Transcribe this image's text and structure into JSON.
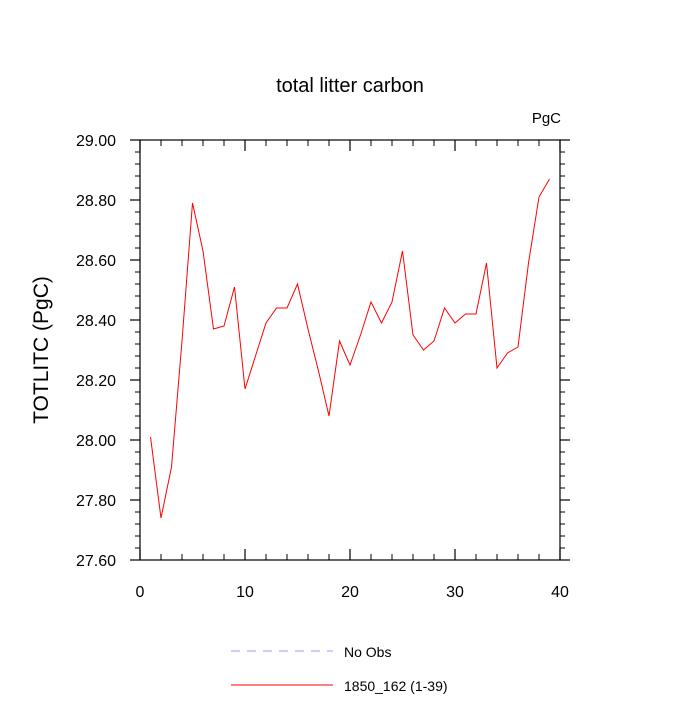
{
  "chart_data": {
    "type": "line",
    "title": "total litter carbon",
    "units_label": "PgC",
    "ylabel": "TOTLITC  (PgC)",
    "xlabel": "",
    "xlim": [
      0,
      40
    ],
    "ylim": [
      27.6,
      29.0
    ],
    "x_ticks": [
      0,
      10,
      20,
      30,
      40
    ],
    "x_tick_labels": [
      "0",
      "10",
      "20",
      "30",
      "40"
    ],
    "y_ticks": [
      27.6,
      27.8,
      28.0,
      28.2,
      28.4,
      28.6,
      28.8,
      29.0
    ],
    "y_tick_labels": [
      "27.60",
      "27.80",
      "28.00",
      "28.20",
      "28.40",
      "28.60",
      "28.80",
      "29.00"
    ],
    "grid": false,
    "legend_position": "bottom",
    "series": [
      {
        "name": "No Obs",
        "color": "#9999ff",
        "dash": "dashed",
        "x": [],
        "y": []
      },
      {
        "name": "1850_162 (1-39)",
        "color": "#ff0000",
        "dash": "solid",
        "x": [
          1,
          2,
          3,
          4,
          5,
          6,
          7,
          8,
          9,
          10,
          11,
          12,
          13,
          14,
          15,
          16,
          17,
          18,
          19,
          20,
          21,
          22,
          23,
          24,
          25,
          26,
          27,
          28,
          29,
          30,
          31,
          32,
          33,
          34,
          35,
          36,
          37,
          38,
          39
        ],
        "y": [
          28.01,
          27.74,
          27.91,
          28.33,
          28.79,
          28.63,
          28.37,
          28.38,
          28.51,
          28.17,
          28.28,
          28.39,
          28.44,
          28.44,
          28.52,
          28.37,
          28.23,
          28.08,
          28.33,
          28.25,
          28.35,
          28.46,
          28.39,
          28.46,
          28.63,
          28.35,
          28.3,
          28.33,
          28.44,
          28.39,
          28.42,
          28.42,
          28.59,
          28.24,
          28.29,
          28.31,
          28.59,
          28.81,
          28.87
        ]
      }
    ]
  }
}
